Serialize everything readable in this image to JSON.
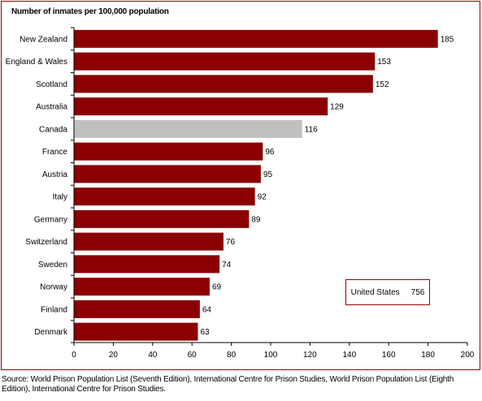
{
  "chart_data": {
    "type": "bar",
    "orientation": "horizontal",
    "title": "Number of inmates per 100,000 population",
    "categories": [
      "New Zealand",
      "England & Wales",
      "Scotland",
      "Australia",
      "Canada",
      "France",
      "Austria",
      "Italy",
      "Germany",
      "Switzerland",
      "Sweden",
      "Norway",
      "Finland",
      "Denmark"
    ],
    "values": [
      185,
      153,
      152,
      129,
      116,
      96,
      95,
      92,
      89,
      76,
      74,
      69,
      64,
      63
    ],
    "data_labels": [
      "185",
      "153",
      "152",
      "129",
      "116",
      "96",
      "95",
      "92",
      "89",
      "76",
      "74",
      "69",
      "64",
      "63"
    ],
    "highlight_category": "Canada",
    "xlim": [
      0,
      200
    ],
    "x_ticks": [
      0,
      20,
      40,
      60,
      80,
      100,
      120,
      140,
      160,
      180,
      200
    ],
    "x_tick_labels": [
      "0",
      "20",
      "40",
      "60",
      "80",
      "100",
      "120",
      "140",
      "160",
      "180",
      "200"
    ],
    "xlabel": "",
    "ylabel": "",
    "grid": false,
    "colors": {
      "bar": "#8b0000",
      "highlight": "#c0c0c0",
      "frame": "#990000"
    },
    "annotation": {
      "label": "United States",
      "value": "756"
    }
  },
  "source": "Source:  World Prison Population List (Seventh Edition), International Centre for Prison Studies, World Prison Population List (Eighth Edition), International Centre for Prison Studies."
}
